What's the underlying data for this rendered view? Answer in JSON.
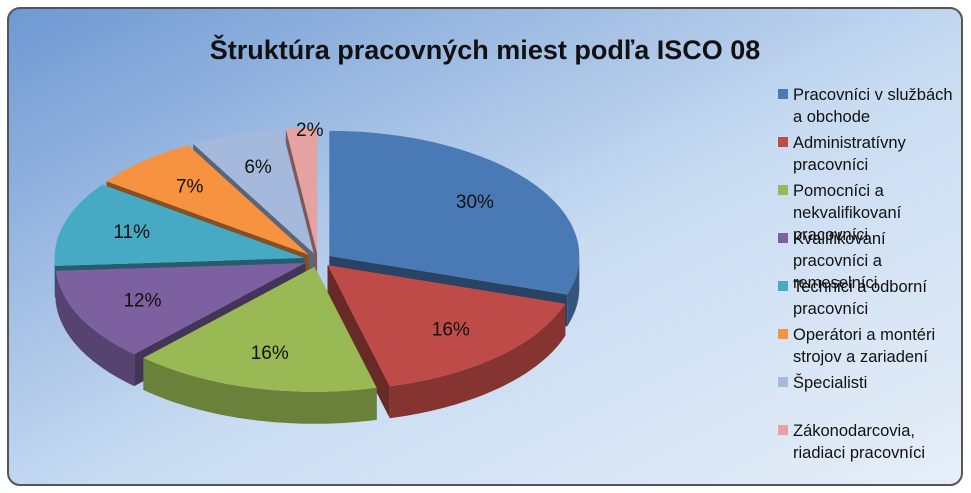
{
  "chart_data": {
    "type": "pie",
    "title": "Štruktúra pracovných miest podľa ISCO 08",
    "categories": [
      "Pracovníci v službách a obchode",
      "Administratívny pracovníci",
      "Pomocníci a nekvalifikovaní pracovníci",
      "Kvalifikovaní pracovníci a remeselníci",
      "Technici a odborní pracovníci",
      "Operátori a montéri strojov a zariadení",
      "Špecialisti",
      "Zákonodarcovia, riadiaci pracovníci"
    ],
    "values": [
      30,
      16,
      16,
      12,
      11,
      7,
      6,
      2
    ],
    "value_labels": [
      "30%",
      "16%",
      "16%",
      "12%",
      "11%",
      "7%",
      "6%",
      "2%"
    ],
    "colors": [
      "#4a7ab5",
      "#be4b48",
      "#98b954",
      "#7d60a0",
      "#46aac5",
      "#f69240",
      "#a5b9dc",
      "#e6a2a1"
    ],
    "legend": "right"
  }
}
